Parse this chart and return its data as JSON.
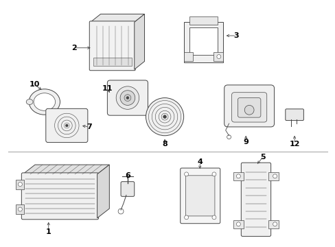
{
  "bg_color": "#ffffff",
  "line_color": "#444444",
  "label_color": "#000000",
  "figsize": [
    4.89,
    3.6
  ],
  "dpi": 100
}
